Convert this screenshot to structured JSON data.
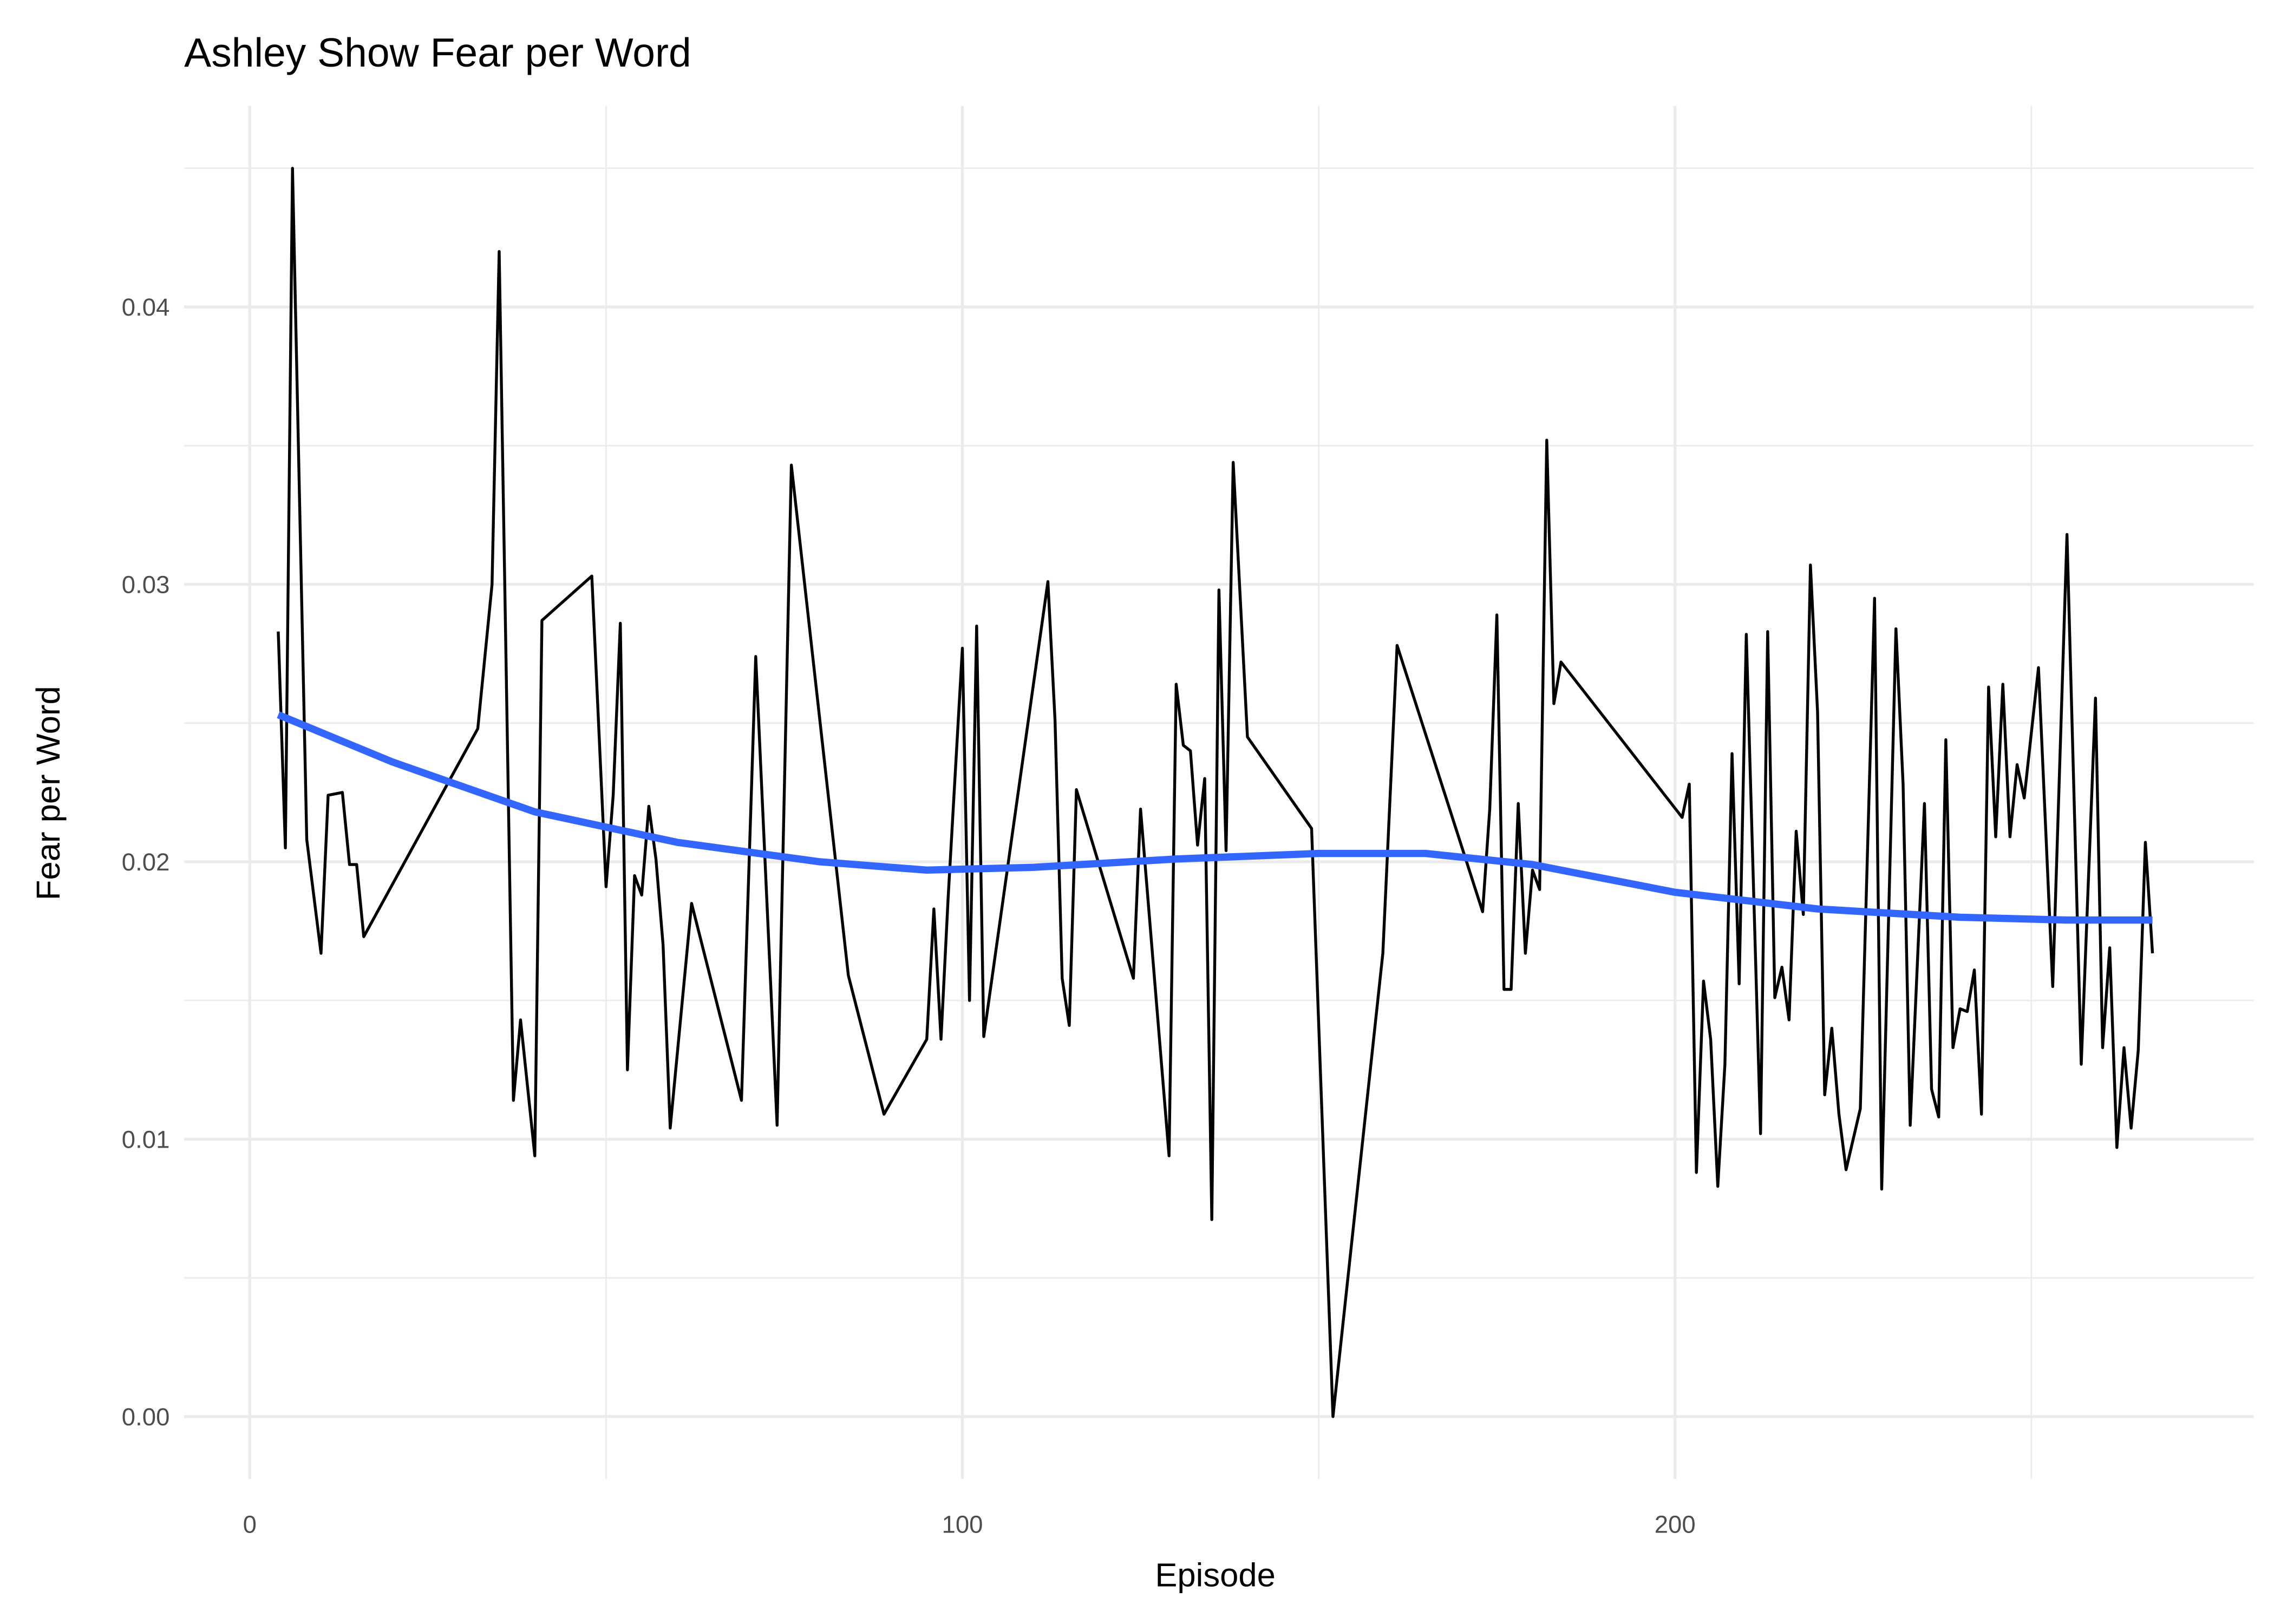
{
  "chart_data": {
    "type": "line",
    "title": "Ashley Show Fear per Word",
    "x_label": "Episode",
    "y_label": "Fear per Word",
    "xlim": [
      -9.2,
      281.2
    ],
    "ylim": [
      -0.00225,
      0.04725
    ],
    "xticks": [
      0,
      100,
      200
    ],
    "yticks": [
      {
        "value": 0,
        "label": "0.00"
      },
      {
        "value": 0.01,
        "label": "0.01"
      },
      {
        "value": 0.02,
        "label": "0.02"
      },
      {
        "value": 0.03,
        "label": "0.03"
      },
      {
        "value": 0.04,
        "label": "0.04"
      }
    ],
    "x_minor_grid": [
      50,
      150,
      250
    ],
    "y_minor_grid": [
      0.005,
      0.015,
      0.025,
      0.035,
      0.045
    ],
    "grid": true,
    "series": [
      {
        "color": "#000000",
        "width": 2,
        "x": [
          4,
          5,
          6,
          8,
          10,
          11,
          13,
          14,
          15,
          16,
          32,
          34,
          35,
          37,
          38,
          40,
          41,
          48,
          50,
          51,
          52,
          53,
          54,
          55,
          56,
          57,
          58,
          59,
          62,
          69,
          71,
          74,
          76,
          84,
          89,
          95,
          96,
          97,
          98,
          100,
          101,
          102,
          103,
          112,
          113,
          114,
          115,
          116,
          124,
          125,
          129,
          130,
          131,
          132,
          133,
          134,
          135,
          136,
          137,
          138,
          140,
          149,
          152,
          159,
          161,
          173,
          174,
          175,
          176,
          177,
          178,
          179,
          180,
          181,
          182,
          183,
          184,
          201,
          202,
          203,
          204,
          205,
          206,
          207,
          208,
          209,
          210,
          212,
          213,
          214,
          215,
          216,
          217,
          218,
          219,
          220,
          221,
          222,
          223,
          224,
          226,
          228,
          229,
          231,
          232,
          233,
          235,
          236,
          237,
          238,
          239,
          240,
          241,
          242,
          243,
          244,
          245,
          246,
          247,
          248,
          249,
          251,
          253,
          255,
          257,
          259,
          260,
          261,
          262,
          263,
          264,
          265,
          266,
          267
        ],
        "values": [
          0.0283,
          0.0205,
          0.045,
          0.0208,
          0.0167,
          0.0224,
          0.0225,
          0.0199,
          0.0199,
          0.0173,
          0.0248,
          0.03,
          0.042,
          0.0114,
          0.0143,
          0.0094,
          0.0287,
          0.0303,
          0.0191,
          0.0224,
          0.0286,
          0.0125,
          0.0195,
          0.0188,
          0.022,
          0.0201,
          0.017,
          0.0104,
          0.0185,
          0.0114,
          0.0274,
          0.0105,
          0.0343,
          0.0159,
          0.0109,
          0.0136,
          0.0183,
          0.0136,
          0.0187,
          0.0277,
          0.015,
          0.0285,
          0.0137,
          0.0301,
          0.0251,
          0.0158,
          0.0141,
          0.0226,
          0.0158,
          0.0219,
          0.0094,
          0.0264,
          0.0242,
          0.024,
          0.0206,
          0.023,
          0.0071,
          0.0298,
          0.0204,
          0.0344,
          0.0245,
          0.0212,
          0,
          0.0167,
          0.0278,
          0.0182,
          0.0219,
          0.0289,
          0.0154,
          0.0154,
          0.0221,
          0.0167,
          0.0197,
          0.019,
          0.0352,
          0.0257,
          0.0272,
          0.0216,
          0.0228,
          0.0088,
          0.0157,
          0.0136,
          0.0083,
          0.0127,
          0.0239,
          0.0156,
          0.0282,
          0.0102,
          0.0283,
          0.0151,
          0.0162,
          0.0143,
          0.0211,
          0.0181,
          0.0307,
          0.0254,
          0.0116,
          0.014,
          0.0109,
          0.0089,
          0.0111,
          0.0295,
          0.0082,
          0.0284,
          0.0228,
          0.0105,
          0.0221,
          0.0118,
          0.0108,
          0.0244,
          0.0133,
          0.0147,
          0.0146,
          0.0161,
          0.0109,
          0.0263,
          0.0209,
          0.0264,
          0.0209,
          0.0235,
          0.0223,
          0.027,
          0.0155,
          0.0318,
          0.0127,
          0.0259,
          0.0133,
          0.0169,
          0.0097,
          0.0133,
          0.0104,
          0.0132,
          0.0207,
          0.0167
        ]
      },
      {
        "color": "#3366ff",
        "width": 5,
        "x": [
          4,
          20,
          40,
          60,
          80,
          95,
          110,
          130,
          150,
          165,
          180,
          200,
          220,
          240,
          255,
          267
        ],
        "values": [
          0.0253,
          0.0236,
          0.0218,
          0.0207,
          0.02,
          0.0197,
          0.0198,
          0.0201,
          0.0203,
          0.0203,
          0.0199,
          0.0189,
          0.0183,
          0.018,
          0.0179,
          0.0179
        ]
      }
    ]
  }
}
